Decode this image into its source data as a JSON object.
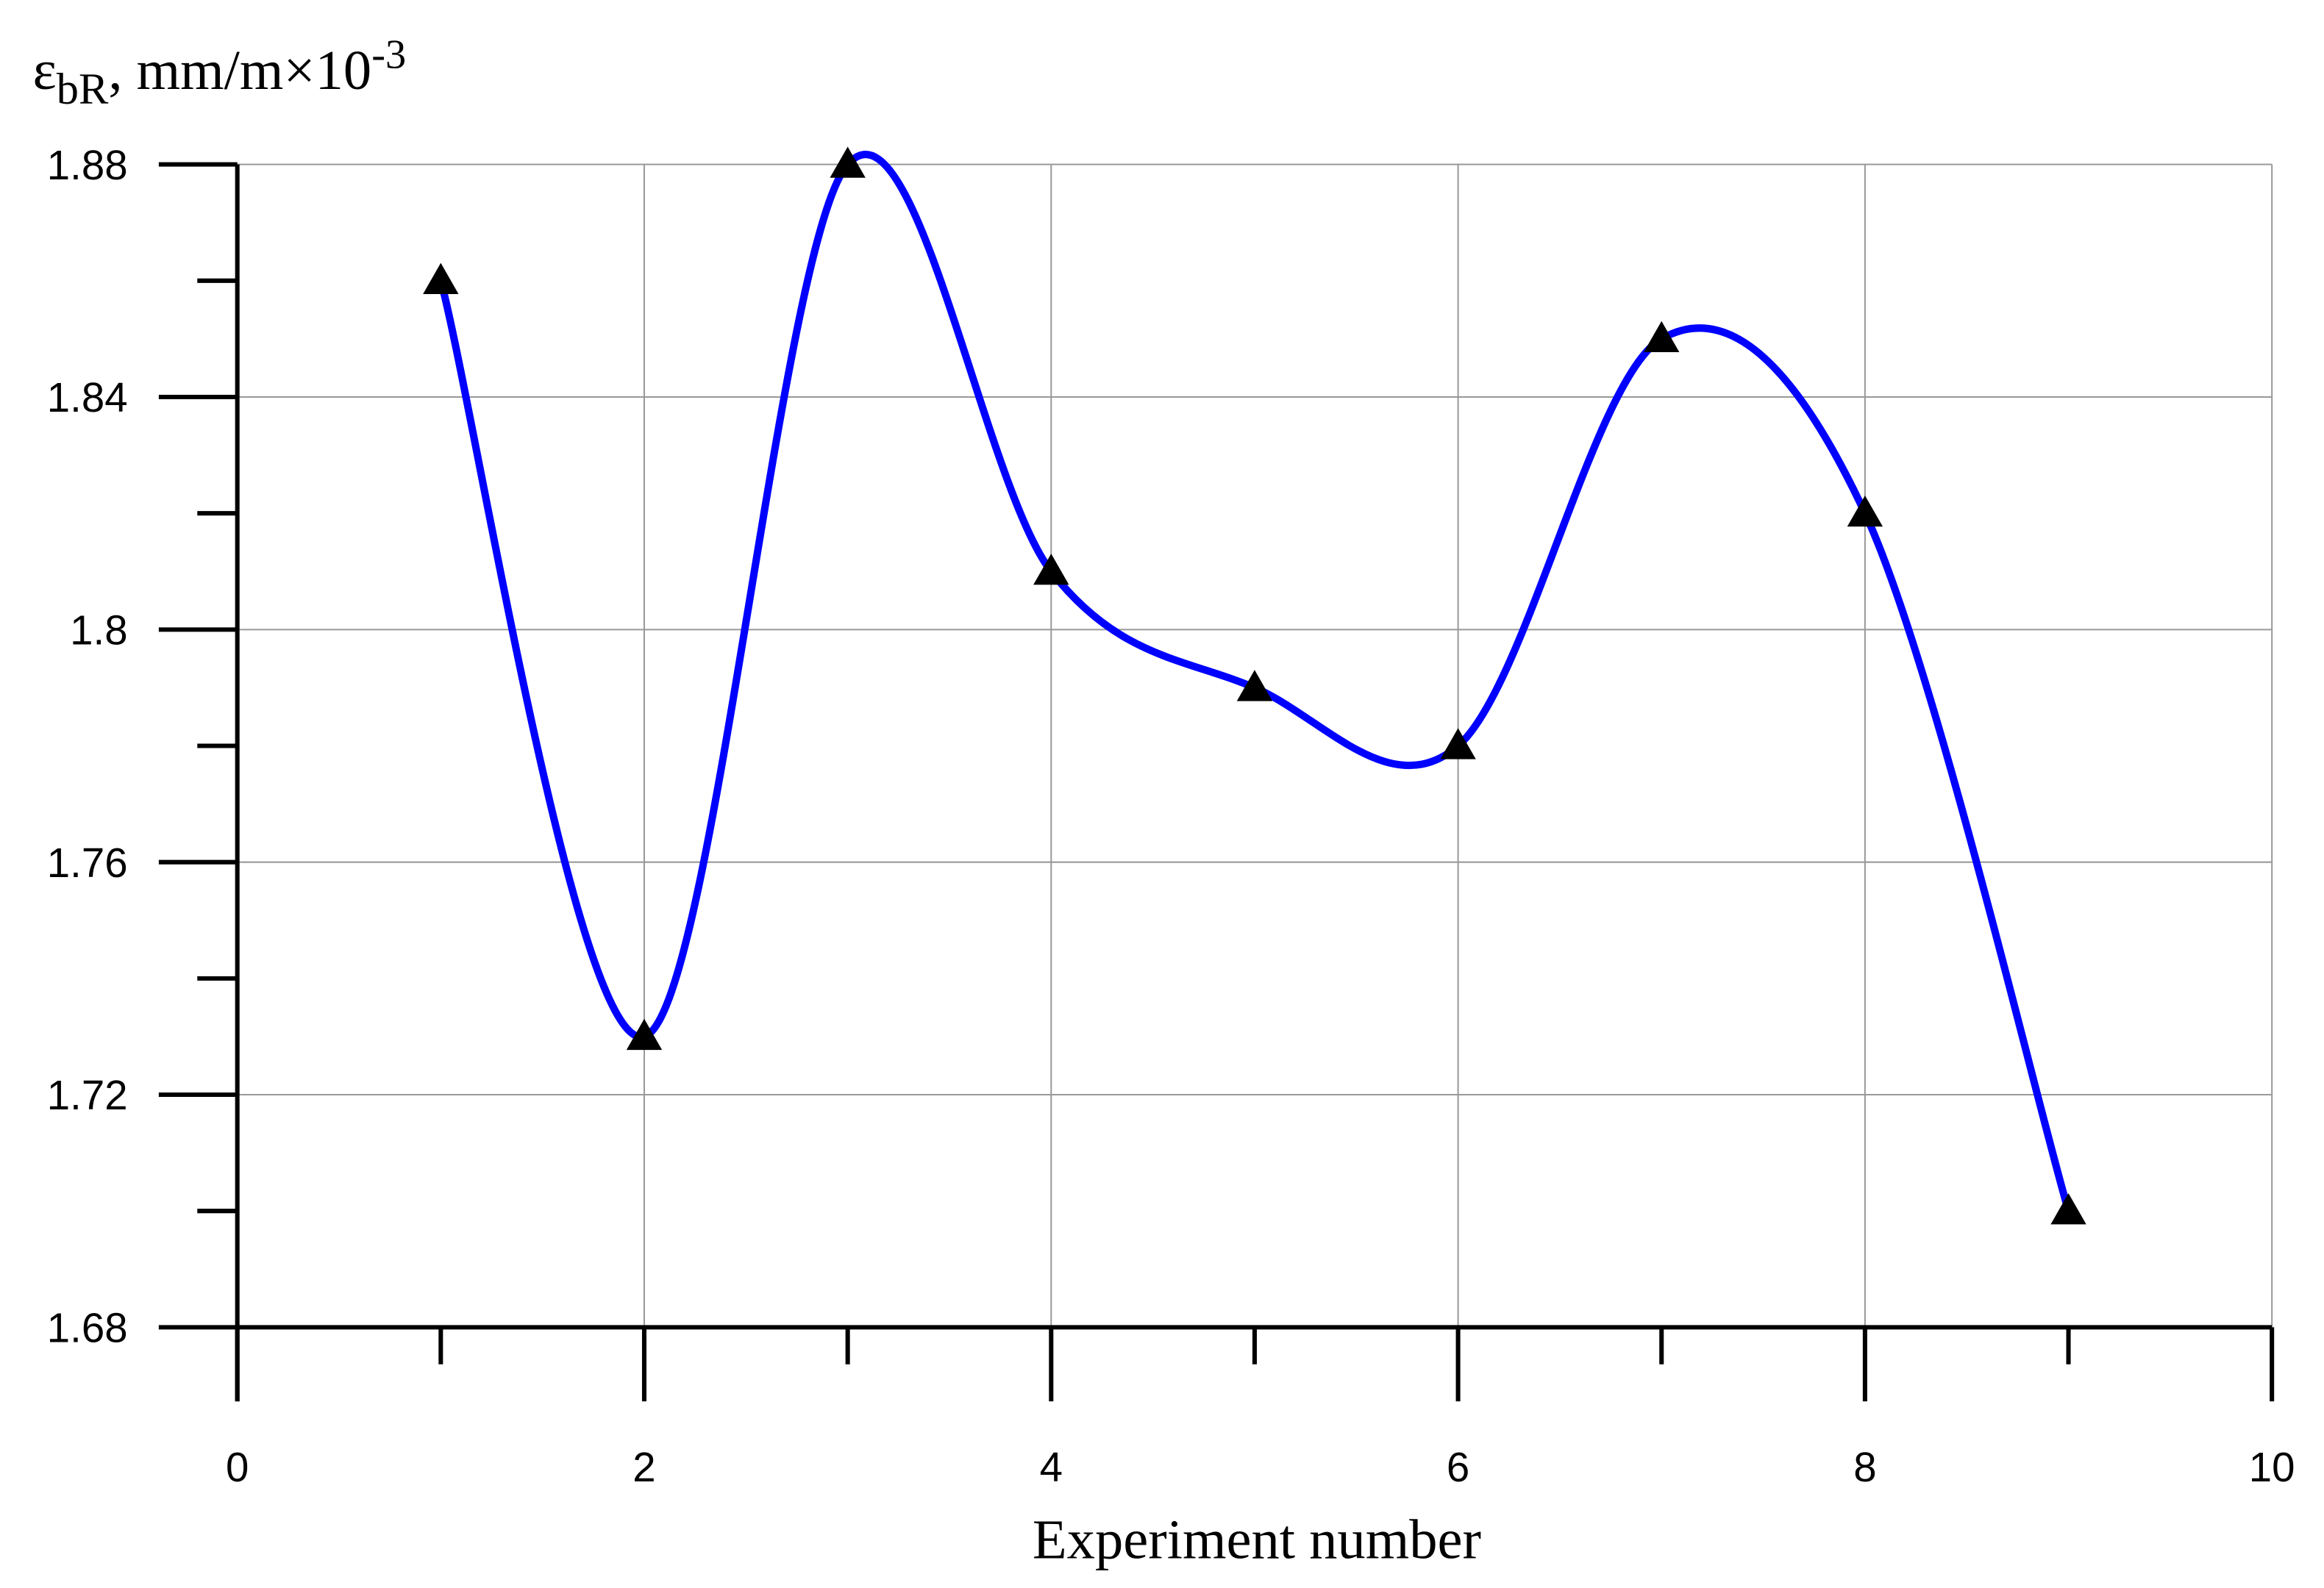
{
  "chart_data": {
    "type": "line",
    "y_label": {
      "symbol": "ε",
      "subscript": "bR",
      "text": ", mm/m×10",
      "superscript": "-3"
    },
    "x_label": "Experiment number",
    "x": [
      1,
      2,
      3,
      4,
      5,
      6,
      7,
      8,
      9
    ],
    "series": [
      {
        "color": "#0000ff",
        "marker_color": "#000000",
        "values": [
          1.86,
          1.73,
          1.88,
          1.81,
          1.79,
          1.78,
          1.85,
          1.82,
          1.7
        ]
      }
    ],
    "xlim": [
      0,
      10
    ],
    "xticks": [
      0,
      2,
      4,
      6,
      8,
      10
    ],
    "xminorticks": [
      1,
      3,
      5,
      7,
      9
    ],
    "ylim": [
      1.68,
      1.88
    ],
    "yticks": [
      1.68,
      1.72,
      1.76,
      1.8,
      1.84,
      1.88
    ],
    "yminorticks": [
      1.7,
      1.74,
      1.78,
      1.82,
      1.86
    ],
    "grid": true,
    "smooth": true
  }
}
